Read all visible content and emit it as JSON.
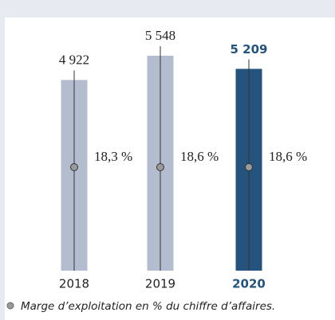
{
  "chart_data": {
    "type": "bar",
    "categories": [
      "2018",
      "2019",
      "2020"
    ],
    "values": [
      4922,
      5548,
      5209
    ],
    "value_labels": [
      "4 922",
      "5 548",
      "5 209"
    ],
    "colors": [
      "#b4bdd0",
      "#b4bdd0",
      "#24547e"
    ],
    "series": [
      {
        "name": "Marge d’exploitation en % du chiffre d’affaires.",
        "color": "#9a9a9a",
        "values": [
          18.3,
          18.6,
          18.6
        ],
        "value_labels": [
          "18,3 %",
          "18,6 %",
          "18,6 %"
        ]
      }
    ]
  }
}
